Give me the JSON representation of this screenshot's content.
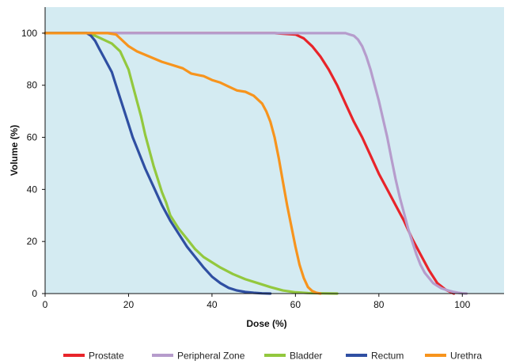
{
  "chart_data": {
    "type": "line",
    "title": "",
    "xlabel": "Dose (%)",
    "ylabel": "Volume (%)",
    "xlim": [
      0,
      110
    ],
    "ylim": [
      0,
      110
    ],
    "x_ticks": [
      0,
      20,
      40,
      60,
      80,
      100
    ],
    "y_ticks": [
      0,
      20,
      40,
      60,
      80,
      100
    ],
    "grid": false,
    "legend_position": "bottom",
    "plot_background": "#d4ebf2",
    "series": [
      {
        "name": "Prostate",
        "color": "#e8242a",
        "x": [
          0,
          10,
          30,
          50,
          55,
          60,
          62,
          64,
          66,
          68,
          70,
          72,
          74,
          76,
          78,
          80,
          82,
          84,
          86,
          88,
          90,
          92,
          94,
          96,
          98
        ],
        "y": [
          100,
          100,
          100,
          100,
          100,
          99.5,
          98,
          95,
          91,
          86,
          80,
          73,
          66,
          60,
          53,
          46,
          40,
          34,
          28,
          21,
          15,
          9,
          4,
          1.5,
          0
        ]
      },
      {
        "name": "Peripheral Zone",
        "color": "#b69ccc",
        "x": [
          0,
          20,
          50,
          70,
          72,
          73,
          74,
          75,
          76,
          77,
          78,
          79,
          80,
          81,
          82,
          83,
          84,
          85,
          86,
          87,
          88,
          89,
          90,
          91,
          92,
          93,
          94,
          95,
          96,
          97,
          98,
          99,
          100,
          101
        ],
        "y": [
          100,
          100,
          100,
          100,
          100,
          99.5,
          99,
          97.5,
          95,
          91,
          86,
          80,
          74,
          67,
          60,
          52,
          44,
          37,
          31,
          25,
          20,
          15,
          11,
          8,
          6,
          4,
          3,
          2,
          1.5,
          1,
          0.6,
          0.3,
          0.1,
          0
        ]
      },
      {
        "name": "Bladder",
        "color": "#93c83e",
        "x": [
          0,
          10,
          12,
          14,
          16,
          18,
          20,
          21,
          22,
          23,
          24,
          25,
          26,
          27,
          28,
          29,
          30,
          32,
          34,
          36,
          38,
          40,
          42,
          45,
          48,
          51,
          54,
          57,
          60,
          63,
          66,
          70
        ],
        "y": [
          100,
          100,
          99,
          97.5,
          96,
          93,
          86,
          80,
          74,
          68,
          61,
          55,
          49,
          44,
          39,
          35,
          30,
          25,
          21,
          17,
          14,
          12,
          10,
          7.5,
          5.5,
          4,
          2.5,
          1.2,
          0.5,
          0.2,
          0.1,
          0
        ]
      },
      {
        "name": "Rectum",
        "color": "#2f4fa2",
        "x": [
          0,
          10,
          11,
          12,
          13,
          14,
          15,
          16,
          17,
          18,
          19,
          20,
          21,
          22,
          24,
          26,
          28,
          30,
          32,
          34,
          36,
          38,
          40,
          42,
          44,
          46,
          48,
          50,
          52,
          54
        ],
        "y": [
          100,
          100,
          99,
          97,
          94,
          91,
          88,
          85,
          80,
          75,
          70,
          65,
          60,
          56,
          48,
          41,
          34,
          28,
          23,
          18,
          14,
          10,
          6.5,
          4,
          2.2,
          1.2,
          0.6,
          0.3,
          0.1,
          0
        ]
      },
      {
        "name": "Urethra",
        "color": "#f7941d",
        "x": [
          0,
          10,
          15,
          17,
          18,
          20,
          22,
          25,
          28,
          30,
          33,
          35,
          38,
          40,
          42,
          44,
          46,
          48,
          50,
          52,
          53,
          54,
          55,
          56,
          57,
          58,
          59,
          60,
          61,
          62,
          63,
          64,
          65,
          66
        ],
        "y": [
          100,
          100,
          100,
          99.5,
          98,
          95,
          93,
          91,
          89,
          88,
          86.5,
          84.5,
          83.5,
          82,
          81,
          79.5,
          78,
          77.5,
          76,
          73,
          70,
          66,
          60,
          52,
          43,
          34,
          26,
          18,
          11,
          6,
          2.5,
          1,
          0.3,
          0
        ]
      }
    ]
  }
}
